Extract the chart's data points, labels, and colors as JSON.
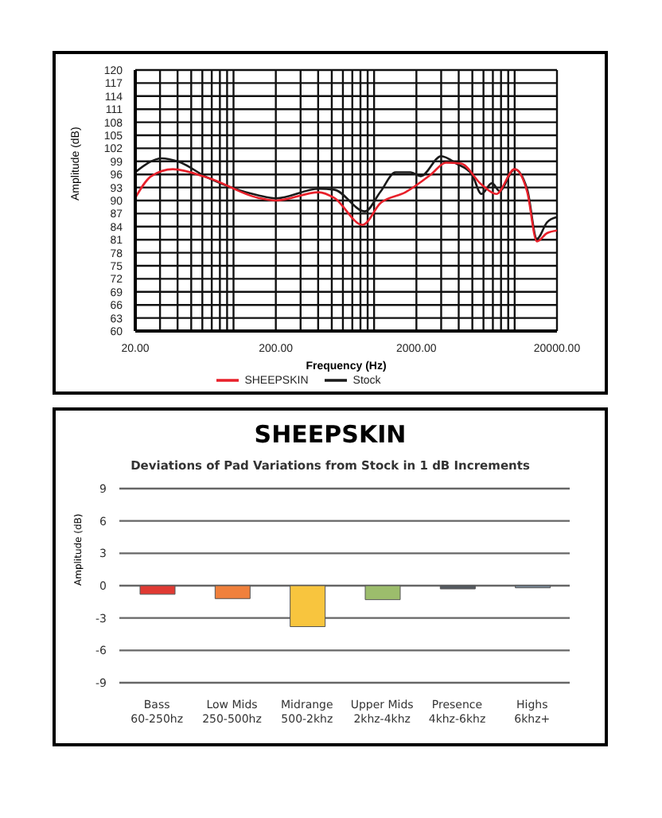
{
  "chart_data": [
    {
      "type": "line",
      "xlabel": "Frequency (Hz)",
      "ylabel": "Amplitude (dB)",
      "log": "x",
      "grid": true,
      "legend": "bottom",
      "marker": "none",
      "line_style": "solid",
      "xlim": [
        20,
        20000
      ],
      "xticks": [
        {
          "value": 20,
          "label": "20.00"
        },
        {
          "value": 30,
          "label": null
        },
        {
          "value": 40,
          "label": null
        },
        {
          "value": 50,
          "label": null
        },
        {
          "value": 60,
          "label": null
        },
        {
          "value": 70,
          "label": null
        },
        {
          "value": 80,
          "label": null
        },
        {
          "value": 90,
          "label": null
        },
        {
          "value": 100,
          "label": null
        },
        {
          "value": 200,
          "label": "200.00"
        },
        {
          "value": 300,
          "label": null
        },
        {
          "value": 400,
          "label": null
        },
        {
          "value": 500,
          "label": null
        },
        {
          "value": 600,
          "label": null
        },
        {
          "value": 700,
          "label": null
        },
        {
          "value": 800,
          "label": null
        },
        {
          "value": 900,
          "label": null
        },
        {
          "value": 1000,
          "label": null
        },
        {
          "value": 2000,
          "label": "2000.00"
        },
        {
          "value": 3000,
          "label": null
        },
        {
          "value": 4000,
          "label": null
        },
        {
          "value": 5000,
          "label": null
        },
        {
          "value": 6000,
          "label": null
        },
        {
          "value": 7000,
          "label": null
        },
        {
          "value": 8000,
          "label": null
        },
        {
          "value": 9000,
          "label": null
        },
        {
          "value": 10000,
          "label": null
        },
        {
          "value": 20000,
          "label": "20000.00"
        }
      ],
      "ylim": [
        60,
        120
      ],
      "yticks": [
        60,
        63,
        66,
        69,
        72,
        75,
        78,
        81,
        84,
        87,
        90,
        93,
        96,
        99,
        102,
        105,
        108,
        111,
        114,
        117,
        120
      ],
      "series": [
        {
          "name": "Stock",
          "color": "#1a1a1a",
          "x": [
            20,
            31,
            40,
            66,
            150,
            200,
            405,
            520,
            860,
            1110,
            1420,
            1820,
            2150,
            3000,
            3850,
            4970,
            5800,
            6900,
            7800,
            10000,
            12300,
            14400,
            17000,
            20000
          ],
          "values": [
            96.5,
            99.7,
            99,
            95.2,
            91.2,
            90.5,
            92.7,
            92.5,
            87.5,
            92,
            96.5,
            96.5,
            95.6,
            100.2,
            98.5,
            96,
            91.5,
            94,
            92.2,
            97.2,
            92.5,
            81.2,
            85,
            86.2
          ]
        },
        {
          "name": "SHEEPSKIN",
          "color": "#e8202a",
          "x": [
            20,
            26,
            37,
            66,
            150,
            200,
            405,
            520,
            830,
            1110,
            1670,
            2540,
            3240,
            4150,
            5800,
            7400,
            10000,
            12300,
            14400,
            17000,
            20000
          ],
          "values": [
            90.6,
            95.6,
            97.2,
            95.2,
            90.6,
            90,
            91.9,
            90.6,
            84.4,
            89.4,
            91.9,
            96,
            98.7,
            98.5,
            93.7,
            91.5,
            97.2,
            91.9,
            80.6,
            82.5,
            83.1
          ]
        }
      ]
    },
    {
      "type": "bar",
      "title": "SHEEPSKIN",
      "subtitle": "Deviations of Pad Variations from Stock in 1 dB Increments",
      "ylabel": "Amplitude (dB)",
      "grid": "y",
      "legend": false,
      "categories": [
        "Bass\n60-250hz",
        "Low Mids\n250-500hz",
        "Midrange\n500-2khz",
        "Upper Mids\n2khz-4khz",
        "Presence\n4khz-6khz",
        "Highs\n6khz+"
      ],
      "values": [
        -0.8,
        -1.2,
        -3.8,
        -1.3,
        -0.3,
        -0.2
      ],
      "colors": [
        "#e03a33",
        "#f0803c",
        "#f8c53e",
        "#9cbd6c",
        "#555a60",
        "#7a8a9a"
      ],
      "ylim": [
        -9,
        9
      ],
      "yticks": [
        -9,
        -6,
        -3,
        0,
        3,
        6,
        9
      ]
    }
  ]
}
